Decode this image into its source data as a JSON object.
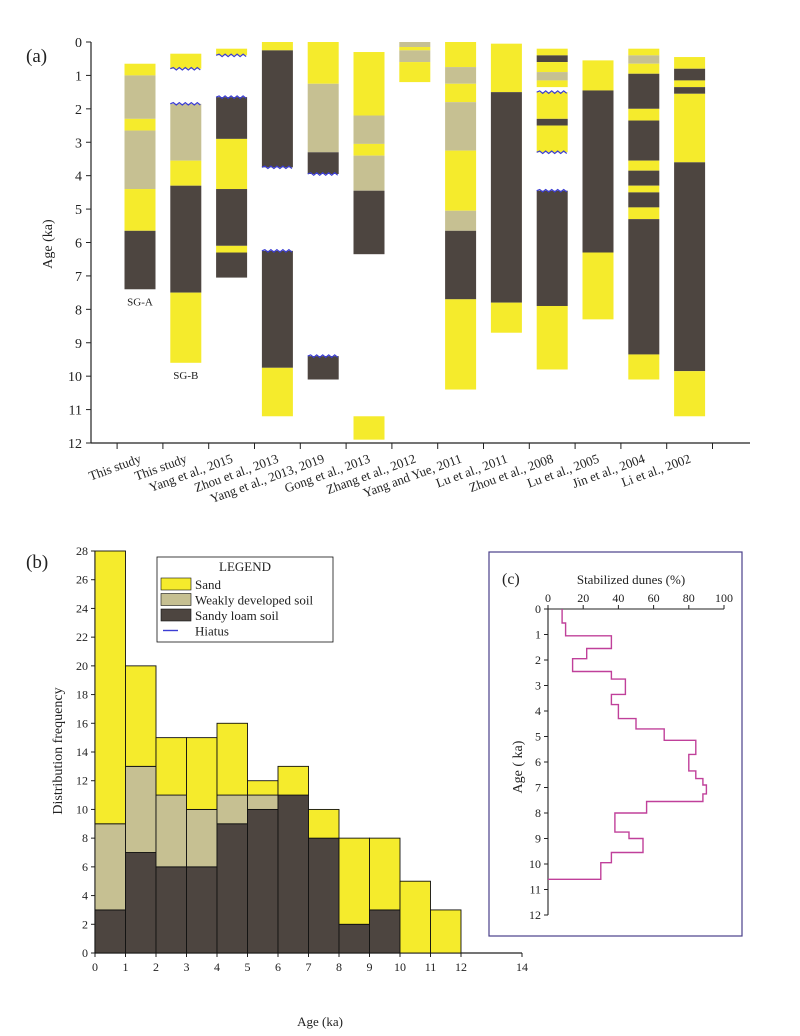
{
  "colors": {
    "sand": "#f5eb2c",
    "weak": "#c6c092",
    "loam": "#4d4540",
    "hiatus": "#3b3dd4",
    "curve": "#c0409a",
    "frame": "#4a3f8a"
  },
  "chart_data": [
    {
      "id": "a",
      "panel_label": "(a)",
      "type": "stacked-column-stratigraphy",
      "ylabel": "Age (ka)",
      "ylim": [
        0,
        12
      ],
      "yticks": [
        "0",
        "1",
        "2",
        "3",
        "4",
        "5",
        "6",
        "7",
        "8",
        "9",
        "10",
        "11",
        "12"
      ],
      "columns": [
        {
          "label": "This study",
          "note": "SG-A",
          "segments": [
            {
              "from": 0.65,
              "to": 1.0,
              "type": "sand"
            },
            {
              "from": 1.0,
              "to": 2.3,
              "type": "weak"
            },
            {
              "from": 2.3,
              "to": 2.65,
              "type": "sand"
            },
            {
              "from": 2.65,
              "to": 4.4,
              "type": "weak"
            },
            {
              "from": 4.4,
              "to": 5.65,
              "type": "sand"
            },
            {
              "from": 5.65,
              "to": 7.4,
              "type": "loam"
            }
          ],
          "hiatuses": []
        },
        {
          "label": "This study",
          "note": "SG-B",
          "segments": [
            {
              "from": 0.35,
              "to": 0.8,
              "type": "sand"
            },
            {
              "from": 1.85,
              "to": 3.55,
              "type": "weak"
            },
            {
              "from": 3.55,
              "to": 4.3,
              "type": "sand"
            },
            {
              "from": 4.3,
              "to": 7.5,
              "type": "loam"
            },
            {
              "from": 7.5,
              "to": 9.6,
              "type": "sand"
            }
          ],
          "hiatuses": [
            0.8,
            1.85
          ]
        },
        {
          "label": "Yang et al., 2015",
          "segments": [
            {
              "from": 0.2,
              "to": 0.4,
              "type": "sand"
            },
            {
              "from": 1.65,
              "to": 2.9,
              "type": "loam"
            },
            {
              "from": 2.9,
              "to": 4.4,
              "type": "sand"
            },
            {
              "from": 4.4,
              "to": 6.1,
              "type": "loam"
            },
            {
              "from": 6.1,
              "to": 6.3,
              "type": "sand"
            },
            {
              "from": 6.3,
              "to": 7.05,
              "type": "loam"
            }
          ],
          "hiatuses": [
            0.4,
            1.65
          ]
        },
        {
          "label": "Zhou et al., 2013",
          "segments": [
            {
              "from": 0.0,
              "to": 0.25,
              "type": "sand"
            },
            {
              "from": 0.25,
              "to": 3.75,
              "type": "loam"
            },
            {
              "from": 6.25,
              "to": 9.75,
              "type": "loam"
            },
            {
              "from": 9.75,
              "to": 11.2,
              "type": "sand"
            }
          ],
          "hiatuses": [
            3.75,
            6.25
          ]
        },
        {
          "label": "Yang et al., 2013, 2019",
          "segments": [
            {
              "from": 0.0,
              "to": 1.25,
              "type": "sand"
            },
            {
              "from": 1.25,
              "to": 3.3,
              "type": "weak"
            },
            {
              "from": 3.3,
              "to": 3.95,
              "type": "loam"
            },
            {
              "from": 9.4,
              "to": 10.1,
              "type": "loam"
            }
          ],
          "hiatuses": [
            3.95,
            9.4
          ]
        },
        {
          "label": "Gong et al., 2013",
          "segments": [
            {
              "from": 0.3,
              "to": 2.2,
              "type": "sand"
            },
            {
              "from": 2.2,
              "to": 3.05,
              "type": "weak"
            },
            {
              "from": 3.05,
              "to": 3.4,
              "type": "sand"
            },
            {
              "from": 3.4,
              "to": 4.45,
              "type": "weak"
            },
            {
              "from": 4.45,
              "to": 6.35,
              "type": "loam"
            },
            {
              "from": 11.2,
              "to": 11.9,
              "type": "sand"
            }
          ],
          "hiatuses": []
        },
        {
          "label": "Zhang et al., 2012",
          "segments": [
            {
              "from": 0.0,
              "to": 0.15,
              "type": "weak"
            },
            {
              "from": 0.15,
              "to": 0.25,
              "type": "sand"
            },
            {
              "from": 0.25,
              "to": 0.6,
              "type": "weak"
            },
            {
              "from": 0.6,
              "to": 1.2,
              "type": "sand"
            }
          ],
          "hiatuses": []
        },
        {
          "label": "Yang and Yue, 2011",
          "segments": [
            {
              "from": 0.0,
              "to": 0.75,
              "type": "sand"
            },
            {
              "from": 0.75,
              "to": 1.25,
              "type": "weak"
            },
            {
              "from": 1.25,
              "to": 1.8,
              "type": "sand"
            },
            {
              "from": 1.8,
              "to": 3.25,
              "type": "weak"
            },
            {
              "from": 3.25,
              "to": 5.05,
              "type": "sand"
            },
            {
              "from": 5.05,
              "to": 5.65,
              "type": "weak"
            },
            {
              "from": 5.65,
              "to": 7.7,
              "type": "loam"
            },
            {
              "from": 7.7,
              "to": 10.4,
              "type": "sand"
            }
          ],
          "hiatuses": []
        },
        {
          "label": "Lu et al., 2011",
          "segments": [
            {
              "from": 0.05,
              "to": 1.5,
              "type": "sand"
            },
            {
              "from": 1.5,
              "to": 7.8,
              "type": "loam"
            },
            {
              "from": 7.8,
              "to": 8.7,
              "type": "sand"
            }
          ],
          "hiatuses": []
        },
        {
          "label": "Zhou et al., 2008",
          "segments": [
            {
              "from": 0.2,
              "to": 0.4,
              "type": "sand"
            },
            {
              "from": 0.4,
              "to": 0.6,
              "type": "loam"
            },
            {
              "from": 0.6,
              "to": 0.9,
              "type": "sand"
            },
            {
              "from": 0.9,
              "to": 1.15,
              "type": "weak"
            },
            {
              "from": 1.15,
              "to": 1.35,
              "type": "sand"
            },
            {
              "from": 1.5,
              "to": 2.3,
              "type": "sand"
            },
            {
              "from": 2.3,
              "to": 2.5,
              "type": "loam"
            },
            {
              "from": 2.5,
              "to": 3.3,
              "type": "sand"
            },
            {
              "from": 4.45,
              "to": 7.9,
              "type": "loam"
            },
            {
              "from": 7.9,
              "to": 9.8,
              "type": "sand"
            }
          ],
          "hiatuses": [
            1.5,
            3.3,
            4.45
          ]
        },
        {
          "label": "Lu et al., 2005",
          "segments": [
            {
              "from": 0.55,
              "to": 1.45,
              "type": "sand"
            },
            {
              "from": 1.45,
              "to": 6.3,
              "type": "loam"
            },
            {
              "from": 6.3,
              "to": 8.3,
              "type": "sand"
            }
          ],
          "hiatuses": []
        },
        {
          "label": "Jin et al., 2004",
          "segments": [
            {
              "from": 0.2,
              "to": 0.4,
              "type": "sand"
            },
            {
              "from": 0.4,
              "to": 0.65,
              "type": "weak"
            },
            {
              "from": 0.65,
              "to": 0.95,
              "type": "sand"
            },
            {
              "from": 0.95,
              "to": 2.0,
              "type": "loam"
            },
            {
              "from": 2.0,
              "to": 2.35,
              "type": "sand"
            },
            {
              "from": 2.35,
              "to": 3.55,
              "type": "loam"
            },
            {
              "from": 3.55,
              "to": 3.85,
              "type": "sand"
            },
            {
              "from": 3.85,
              "to": 4.3,
              "type": "loam"
            },
            {
              "from": 4.3,
              "to": 4.5,
              "type": "sand"
            },
            {
              "from": 4.5,
              "to": 4.95,
              "type": "loam"
            },
            {
              "from": 4.95,
              "to": 5.3,
              "type": "sand"
            },
            {
              "from": 5.3,
              "to": 9.35,
              "type": "loam"
            },
            {
              "from": 9.35,
              "to": 10.1,
              "type": "sand"
            }
          ],
          "hiatuses": []
        },
        {
          "label": "Li et al., 2002",
          "segments": [
            {
              "from": 0.45,
              "to": 0.8,
              "type": "sand"
            },
            {
              "from": 0.8,
              "to": 1.15,
              "type": "loam"
            },
            {
              "from": 1.15,
              "to": 1.35,
              "type": "sand"
            },
            {
              "from": 1.35,
              "to": 1.55,
              "type": "loam"
            },
            {
              "from": 1.55,
              "to": 3.6,
              "type": "sand"
            },
            {
              "from": 3.6,
              "to": 9.85,
              "type": "loam"
            },
            {
              "from": 9.85,
              "to": 11.2,
              "type": "sand"
            }
          ],
          "hiatuses": []
        }
      ]
    },
    {
      "id": "b",
      "panel_label": "(b)",
      "type": "bar",
      "stacked": true,
      "xlabel": "Age (ka)",
      "ylabel": "Distribution frequency",
      "xlim": [
        0,
        14
      ],
      "ylim": [
        0,
        28
      ],
      "xticks": [
        "0",
        "1",
        "2",
        "3",
        "4",
        "5",
        "6",
        "7",
        "8",
        "9",
        "10",
        "11",
        "12",
        "14"
      ],
      "yticks": [
        "0",
        "2",
        "4",
        "6",
        "8",
        "10",
        "12",
        "14",
        "16",
        "18",
        "20",
        "22",
        "24",
        "26",
        "28"
      ],
      "bins": [
        [
          0,
          1
        ],
        [
          1,
          2
        ],
        [
          2,
          3
        ],
        [
          3,
          4
        ],
        [
          4,
          5
        ],
        [
          5,
          6
        ],
        [
          6,
          7
        ],
        [
          7,
          8
        ],
        [
          8,
          9
        ],
        [
          9,
          10
        ],
        [
          10,
          11
        ],
        [
          11,
          12
        ]
      ],
      "series": [
        {
          "key": "loam",
          "name": "Sandy loam soil",
          "values": [
            3,
            7,
            6,
            6,
            9,
            10,
            11,
            8,
            2,
            3,
            0,
            0
          ]
        },
        {
          "key": "weak",
          "name": "Weakly developed soil",
          "values": [
            6,
            6,
            5,
            4,
            2,
            1,
            0,
            0,
            0,
            0,
            0,
            0
          ]
        },
        {
          "key": "sand",
          "name": "Sand",
          "values": [
            19,
            7,
            4,
            5,
            5,
            1,
            2,
            2,
            6,
            5,
            5,
            3
          ]
        }
      ],
      "legend": {
        "title": "LEGEND",
        "placement": "top-center",
        "items": [
          {
            "key": "sand",
            "label": "Sand"
          },
          {
            "key": "weak",
            "label": "Weakly developed soil"
          },
          {
            "key": "loam",
            "label": "Sandy loam soil"
          },
          {
            "key": "hiatus",
            "label": "Hiatus"
          }
        ]
      }
    },
    {
      "id": "c",
      "panel_label": "(c)",
      "type": "line",
      "xlabel": "Stabilized dunes (%)",
      "ylabel": "Age ( ka)",
      "xlim": [
        0,
        100
      ],
      "ylim": [
        0,
        12
      ],
      "xticks": [
        "0",
        "20",
        "40",
        "60",
        "80",
        "100"
      ],
      "yticks": [
        "0",
        "1",
        "2",
        "3",
        "4",
        "5",
        "6",
        "7",
        "8",
        "9",
        "10",
        "11",
        "12"
      ],
      "x": [
        8,
        8,
        10,
        10,
        36,
        36,
        22,
        22,
        14,
        14,
        36,
        36,
        44,
        44,
        36,
        36,
        40,
        40,
        50,
        50,
        66,
        66,
        84,
        84,
        80,
        80,
        84,
        84,
        88,
        88,
        90,
        90,
        88,
        88,
        56,
        56,
        38,
        38,
        46,
        46,
        54,
        54,
        36,
        36,
        30,
        30,
        0
      ],
      "y": [
        0,
        0.55,
        0.55,
        1.05,
        1.05,
        1.55,
        1.55,
        1.95,
        1.95,
        2.45,
        2.45,
        2.75,
        2.75,
        3.35,
        3.35,
        3.75,
        3.75,
        4.3,
        4.3,
        4.7,
        4.7,
        5.15,
        5.15,
        5.7,
        5.7,
        6.35,
        6.35,
        6.65,
        6.65,
        6.9,
        6.9,
        7.25,
        7.25,
        7.55,
        7.55,
        8.0,
        8.0,
        8.75,
        8.75,
        9.0,
        9.0,
        9.55,
        9.55,
        9.95,
        9.95,
        10.6,
        10.6
      ]
    }
  ]
}
